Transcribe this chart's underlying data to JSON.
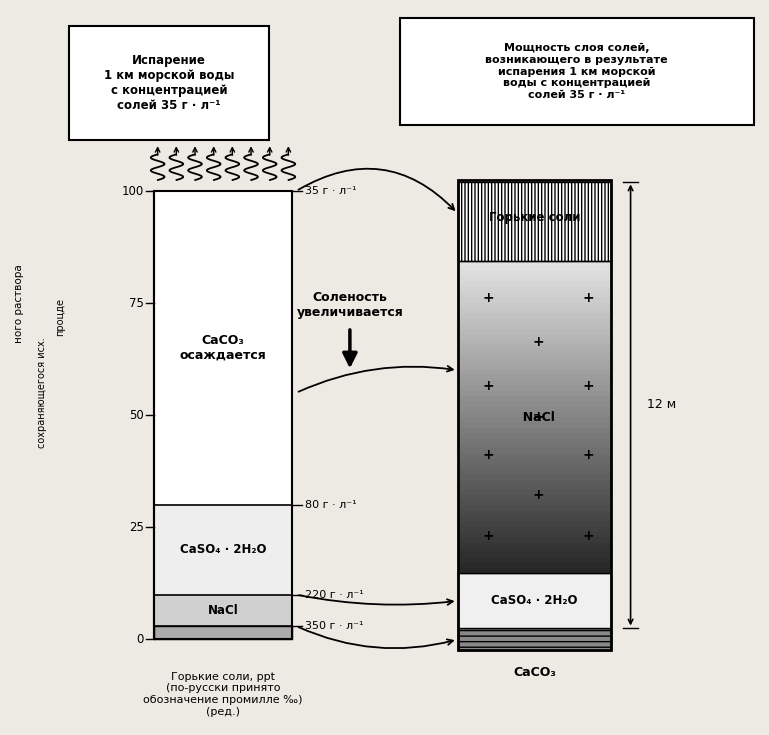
{
  "bg_color": "#ede9e3",
  "left_box_text": "Испарение\n1 км морской воды\nс концентрацией\nсолей 35 г · л⁻¹",
  "right_box_text": "Мощность слоя солей,\nвозникающего в результате\nиспарения 1 км морской\nводы с концентрацией\nсолей 35 г · л⁻¹",
  "ylabel": "процде\nсохраняющегося исх.\nного раствора",
  "xlabel": "Горькие соли, ppt\n(по-русски принято\nобозначение промилле ‰)\n(ред.)",
  "salinity_text": "Соленость\nувеличивается",
  "dim_label": "12 м",
  "conc_labels": [
    [
      100,
      "35 г · л⁻¹"
    ],
    [
      30,
      "80 г · л⁻¹"
    ],
    [
      10,
      "220 г · л⁻¹"
    ],
    [
      3,
      "350 г · л⁻¹"
    ]
  ],
  "yticks": [
    0,
    25,
    50,
    75,
    100
  ]
}
